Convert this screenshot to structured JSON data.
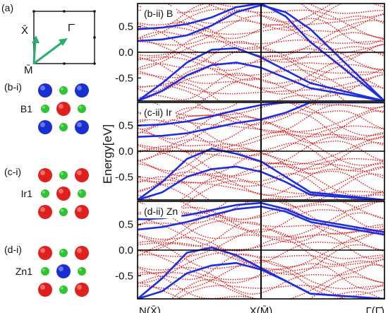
{
  "left_column": {
    "panel_a_label": "(a)",
    "bz_labels": {
      "x_bar": "X̄",
      "gamma_bar": "Γ̄",
      "m_bar": "M̄"
    },
    "colors": {
      "arrow": "#2ab06a",
      "frame": "#111111"
    }
  },
  "structures": [
    {
      "panel_label": "(b-i)",
      "center_label": "B1",
      "corner_color": "#1a2fd0",
      "center_color": "#e0201c",
      "edge_color": "#2ec42e"
    },
    {
      "panel_label": "(c-i)",
      "center_label": "Ir1",
      "corner_color": "#e0201c",
      "center_color": "#e0201c",
      "edge_color": "#2ec42e"
    },
    {
      "panel_label": "(d-i)",
      "center_label": "Zn1",
      "corner_color": "#e0201c",
      "center_color": "#1a2fd0",
      "edge_color": "#2ec42e"
    }
  ],
  "chart_data": [
    {
      "type": "line",
      "panel_label": "(b-ii) B",
      "ylabel": "Energy[eV]",
      "ylim": [
        -0.95,
        0.95
      ],
      "yticks": [
        0.5,
        0.0,
        -0.5
      ],
      "ytick_labels": [
        "0.5",
        "0.0",
        "-0.5"
      ],
      "x": [
        0.0,
        0.1,
        0.2,
        0.3,
        0.4,
        0.5,
        0.6,
        0.7,
        1.0
      ],
      "series": [
        {
          "values": [
            0.22,
            0.25,
            0.33,
            0.52,
            0.78,
            0.92,
            0.78,
            0.45,
            -0.95
          ]
        },
        {
          "values": [
            0.45,
            0.48,
            0.55,
            0.68,
            0.88,
            0.95,
            0.7,
            0.2,
            -0.95
          ]
        },
        {
          "values": [
            -0.95,
            -0.6,
            -0.2,
            0.05,
            0.08,
            -0.1,
            -0.35,
            -0.6,
            -0.95
          ]
        },
        {
          "values": [
            -0.95,
            -0.75,
            -0.45,
            -0.25,
            -0.2,
            -0.3,
            -0.5,
            -0.7,
            -0.95
          ]
        }
      ],
      "vlines_x": [
        0.5
      ]
    },
    {
      "type": "line",
      "panel_label": "(c-ii) Ir",
      "ylim": [
        -0.95,
        0.95
      ],
      "yticks": [
        0.5,
        0.0,
        -0.5
      ],
      "ytick_labels": [
        "0.5",
        "0.0",
        "-0.5"
      ],
      "x": [
        0.0,
        0.1,
        0.2,
        0.3,
        0.4,
        0.5,
        0.6,
        0.7,
        1.0
      ],
      "series": [
        {
          "values": [
            0.28,
            0.3,
            0.35,
            0.45,
            0.55,
            0.62,
            0.75,
            0.95,
            0.95
          ]
        },
        {
          "values": [
            0.5,
            0.52,
            0.58,
            0.68,
            0.8,
            0.9,
            0.95,
            0.95,
            0.95
          ]
        },
        {
          "values": [
            -0.95,
            -0.6,
            -0.15,
            0.05,
            -0.05,
            -0.2,
            -0.5,
            -0.8,
            -0.95
          ]
        },
        {
          "values": [
            -0.95,
            -0.8,
            -0.5,
            -0.35,
            -0.3,
            -0.4,
            -0.6,
            -0.85,
            -0.95
          ]
        }
      ],
      "vlines_x": [
        0.5
      ]
    },
    {
      "type": "line",
      "panel_label": "(d-ii) Zn",
      "ylim": [
        -0.95,
        0.95
      ],
      "yticks": [
        0.5,
        0.0,
        -0.5
      ],
      "ytick_labels": [
        "0.5",
        "0.0",
        "-0.5"
      ],
      "xtick_labels": [
        "N(X̄)",
        "X(M̄)",
        "Γ(Γ̄)"
      ],
      "xticks": [
        0.0,
        0.5,
        1.0
      ],
      "x": [
        0.0,
        0.1,
        0.2,
        0.3,
        0.4,
        0.5,
        0.6,
        0.7,
        1.0
      ],
      "series": [
        {
          "values": [
            0.4,
            0.45,
            0.55,
            0.68,
            0.8,
            0.85,
            0.75,
            0.55,
            0.3
          ]
        },
        {
          "values": [
            0.6,
            0.62,
            0.68,
            0.78,
            0.88,
            0.92,
            0.8,
            0.6,
            0.35
          ]
        },
        {
          "values": [
            -0.95,
            -0.55,
            -0.05,
            0.05,
            -0.1,
            -0.35,
            -0.6,
            -0.85,
            -0.95
          ]
        },
        {
          "values": [
            -0.95,
            -0.8,
            -0.45,
            -0.3,
            -0.25,
            -0.38,
            -0.6,
            -0.85,
            -0.95
          ]
        }
      ],
      "vlines_x": [
        0.5
      ]
    }
  ],
  "colors": {
    "red_bands": "#e11c1c",
    "blue_bands": "#1c2fe0",
    "axes": "#000000"
  }
}
